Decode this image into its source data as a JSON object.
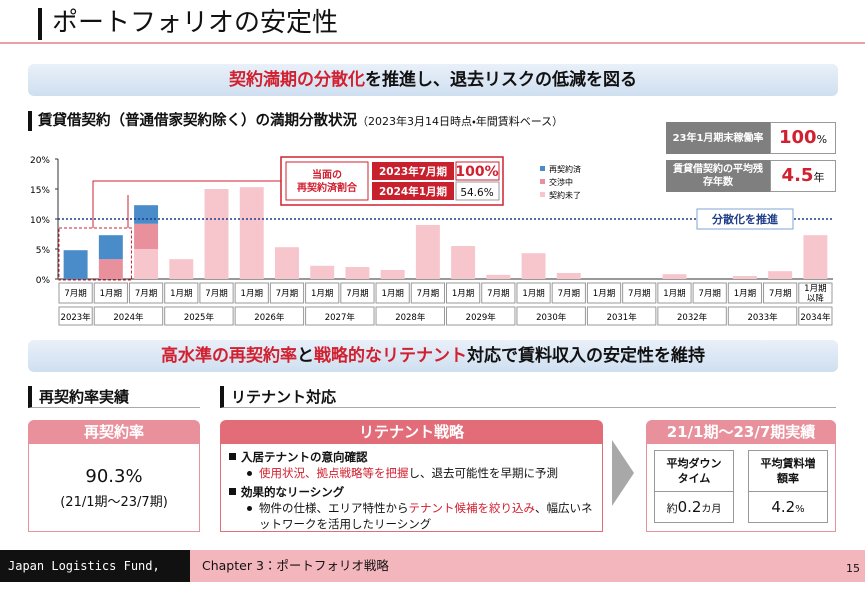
{
  "header": {
    "title": "ポートフォリオの安定性"
  },
  "banner1": [
    {
      "text": "契約満期の分散化",
      "red": true
    },
    {
      "text": "を推進し、退去リスクの低減を図る",
      "red": false
    }
  ],
  "chart_section": {
    "title": "賃貸借契約（普通借家契約除く）の満期分散状況",
    "note": "（2023年3月14日時点・年間賃料ベース）"
  },
  "chart_data": {
    "type": "stacked_bar",
    "categories": [
      "7月期",
      "1月期",
      "7月期",
      "1月期",
      "7月期",
      "1月期",
      "7月期",
      "1月期",
      "7月期",
      "1月期",
      "7月期",
      "1月期",
      "7月期",
      "1月期",
      "7月期",
      "1月期",
      "7月期",
      "1月期",
      "7月期",
      "1月期",
      "7月期",
      "1月期以降"
    ],
    "years": [
      "2023年",
      "2024年",
      "2025年",
      "2026年",
      "2027年",
      "2028年",
      "2029年",
      "2030年",
      "2031年",
      "2032年",
      "2033年",
      "2034年"
    ],
    "series": [
      {
        "name": "契約未了",
        "color": "#f6c6cc",
        "values": [
          0,
          0,
          5.0,
          3.3,
          15.0,
          15.3,
          5.3,
          2.2,
          2.0,
          1.5,
          9.0,
          5.5,
          0.7,
          4.3,
          1.0,
          0,
          0,
          0.8,
          0,
          0.5,
          1.3,
          7.3
        ]
      },
      {
        "name": "交渉中",
        "color": "#e8909b",
        "values": [
          0,
          3.3,
          4.2,
          0,
          0,
          0,
          0,
          0,
          0,
          0,
          0,
          0,
          0,
          0,
          0,
          0,
          0,
          0,
          0,
          0,
          0,
          0
        ]
      },
      {
        "name": "再契約済",
        "color": "#4a8cc9",
        "values": [
          4.8,
          4.0,
          3.1,
          0,
          0,
          0,
          0,
          0,
          0,
          0,
          0,
          0,
          0,
          0,
          0,
          0,
          0,
          0,
          0,
          0,
          0,
          0
        ]
      }
    ],
    "legend_order": [
      2,
      1,
      0
    ],
    "ylim": [
      0,
      20
    ],
    "yticks": [
      {
        "value": 0,
        "label": "0%"
      },
      {
        "value": 5,
        "label": "5%"
      },
      {
        "value": 10,
        "label": "10%"
      },
      {
        "value": 15,
        "label": "15%"
      },
      {
        "value": 20,
        "label": "20%"
      }
    ],
    "reference_line": {
      "value": 10,
      "label": "分散化を推進",
      "color": "#1f3c88"
    },
    "callout": {
      "title": "当面の再契約済割合",
      "rows": [
        [
          "2023年7月期",
          "100%"
        ],
        [
          "2024年1月期",
          "54.6%"
        ]
      ]
    }
  },
  "kpis": [
    {
      "label": "23年1月期末稼働率",
      "value": "100",
      "unit": "%"
    },
    {
      "label": "賃貸借契約の平均残存年数",
      "value": "4.5",
      "unit": "年"
    }
  ],
  "banner2": [
    {
      "text": "高水準の再契約率",
      "red": true
    },
    {
      "text": "と",
      "red": false
    },
    {
      "text": "戦略的なリテナント",
      "red": true
    },
    {
      "text": "対応で賃料収入の安定性を維持",
      "red": false
    }
  ],
  "renewal": {
    "section": "再契約率実績",
    "header": "再契約率",
    "value": "90.3%",
    "period": "(21/1期～23/7期)"
  },
  "retenant": {
    "section": "リテナント対応",
    "header": "リテナント戦略",
    "items": [
      {
        "title": "入居テナントの意向確認",
        "detail": [
          {
            "text": "使用状況、拠点戦略等を把握",
            "red": true
          },
          {
            "text": "し、退去可能性を早期に予測",
            "red": false
          }
        ]
      },
      {
        "title": "効果的なリーシング",
        "detail": [
          {
            "text": "物件の仕様、エリア特性から",
            "red": false
          },
          {
            "text": "テナント候補を絞り込み",
            "red": true
          },
          {
            "text": "、幅広いネットワークを活用したリーシング",
            "red": false
          }
        ]
      }
    ]
  },
  "results": {
    "header": "21/1期～23/7期実績",
    "items": [
      {
        "label": "平均ダウンタイム",
        "prefix": "約",
        "value": "0.2",
        "unit": "カ月"
      },
      {
        "label": "平均賃料増額率",
        "prefix": "",
        "value": "4.2",
        "unit": "%"
      }
    ]
  },
  "footer": {
    "company": "Japan Logistics Fund, Inc.",
    "chapter": "Chapter 3：ポートフォリオ戦略",
    "page": "15"
  }
}
